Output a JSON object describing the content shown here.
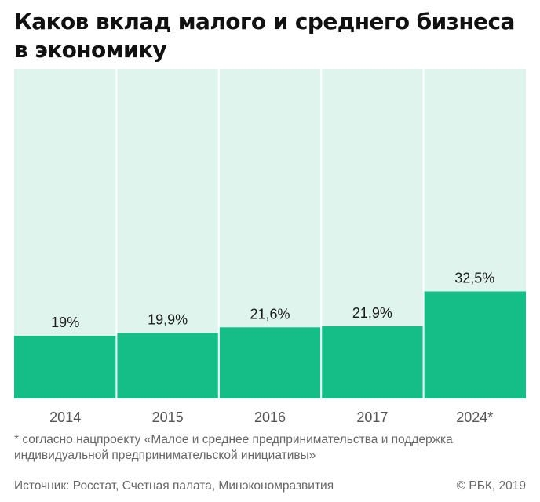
{
  "title": "Каков вклад малого и среднего бизнеса в экономику",
  "chart_data": {
    "type": "bar",
    "categories": [
      "2014",
      "2015",
      "2016",
      "2017",
      "2024*"
    ],
    "values": [
      19,
      19.9,
      21.6,
      21.9,
      32.5
    ],
    "value_labels": [
      "19%",
      "19,9%",
      "21,6%",
      "21,9%",
      "32,5%"
    ],
    "ylim": [
      0,
      100
    ],
    "colors": {
      "bar": "#14be86",
      "background": "#dff4ed",
      "separator": "#ffffff"
    }
  },
  "footnote": "* согласно нацпроекту  «Малое и среднее предпринимательства и поддержка индивидуальной предпринимательской инициативы»",
  "source": "Источник: Росстат, Счетная палата, Минэкономразвития",
  "copyright": "© РБК, 2019"
}
